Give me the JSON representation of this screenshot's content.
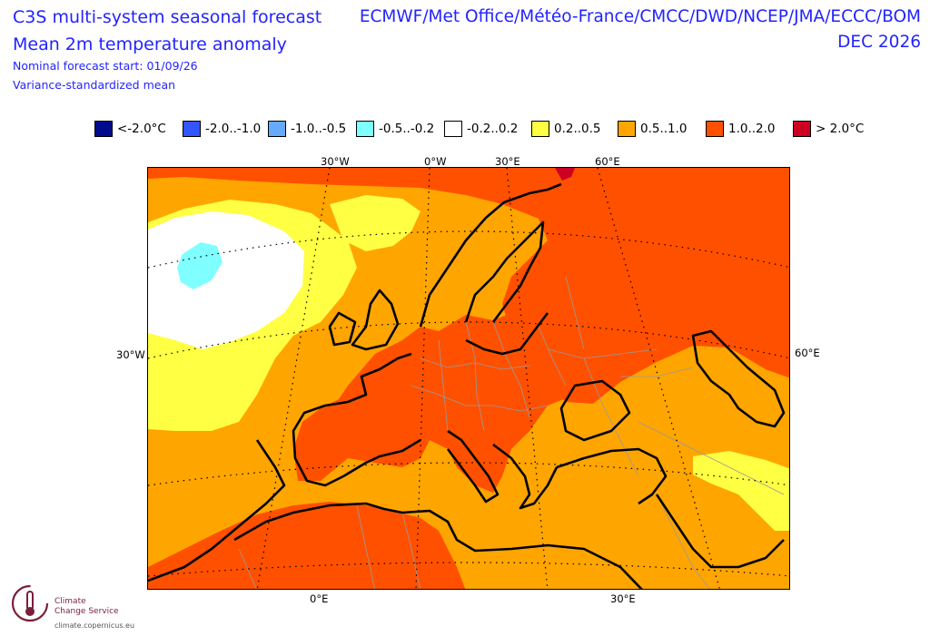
{
  "header": {
    "title_line1": "C3S multi-system seasonal forecast",
    "title_line2": "Mean 2m temperature anomaly",
    "forecast_start": "Nominal forecast start: 01/09/26",
    "method": "Variance-standardized mean",
    "centres": "ECMWF/Met Office/Météo-France/CMCC/DWD/NCEP/JMA/ECCC/BOM",
    "valid_month": "DEC 2026"
  },
  "legend": [
    {
      "label": "<-2.0°C",
      "color": "#000c8c"
    },
    {
      "label": "-2.0..-1.0",
      "color": "#3355ff"
    },
    {
      "label": "-1.0..-0.5",
      "color": "#66aaff"
    },
    {
      "label": "-0.5..-0.2",
      "color": "#7fffff"
    },
    {
      "label": "-0.2..0.2",
      "color": "#ffffff"
    },
    {
      "label": "0.2..0.5",
      "color": "#ffff44"
    },
    {
      "label": "0.5..1.0",
      "color": "#ffa500"
    },
    {
      "label": "1.0..2.0",
      "color": "#ff5000"
    },
    {
      "label": "> 2.0°C",
      "color": "#cc0022"
    }
  ],
  "axes": {
    "top": [
      "30°W",
      "0°W",
      "30°E",
      "60°E"
    ],
    "left": "30°W",
    "right": "60°E",
    "bottom": [
      "0°E",
      "30°E"
    ]
  },
  "footer": {
    "org_line1": "Climate",
    "org_line2": "Change Service",
    "url": "climate.copernicus.eu"
  }
}
